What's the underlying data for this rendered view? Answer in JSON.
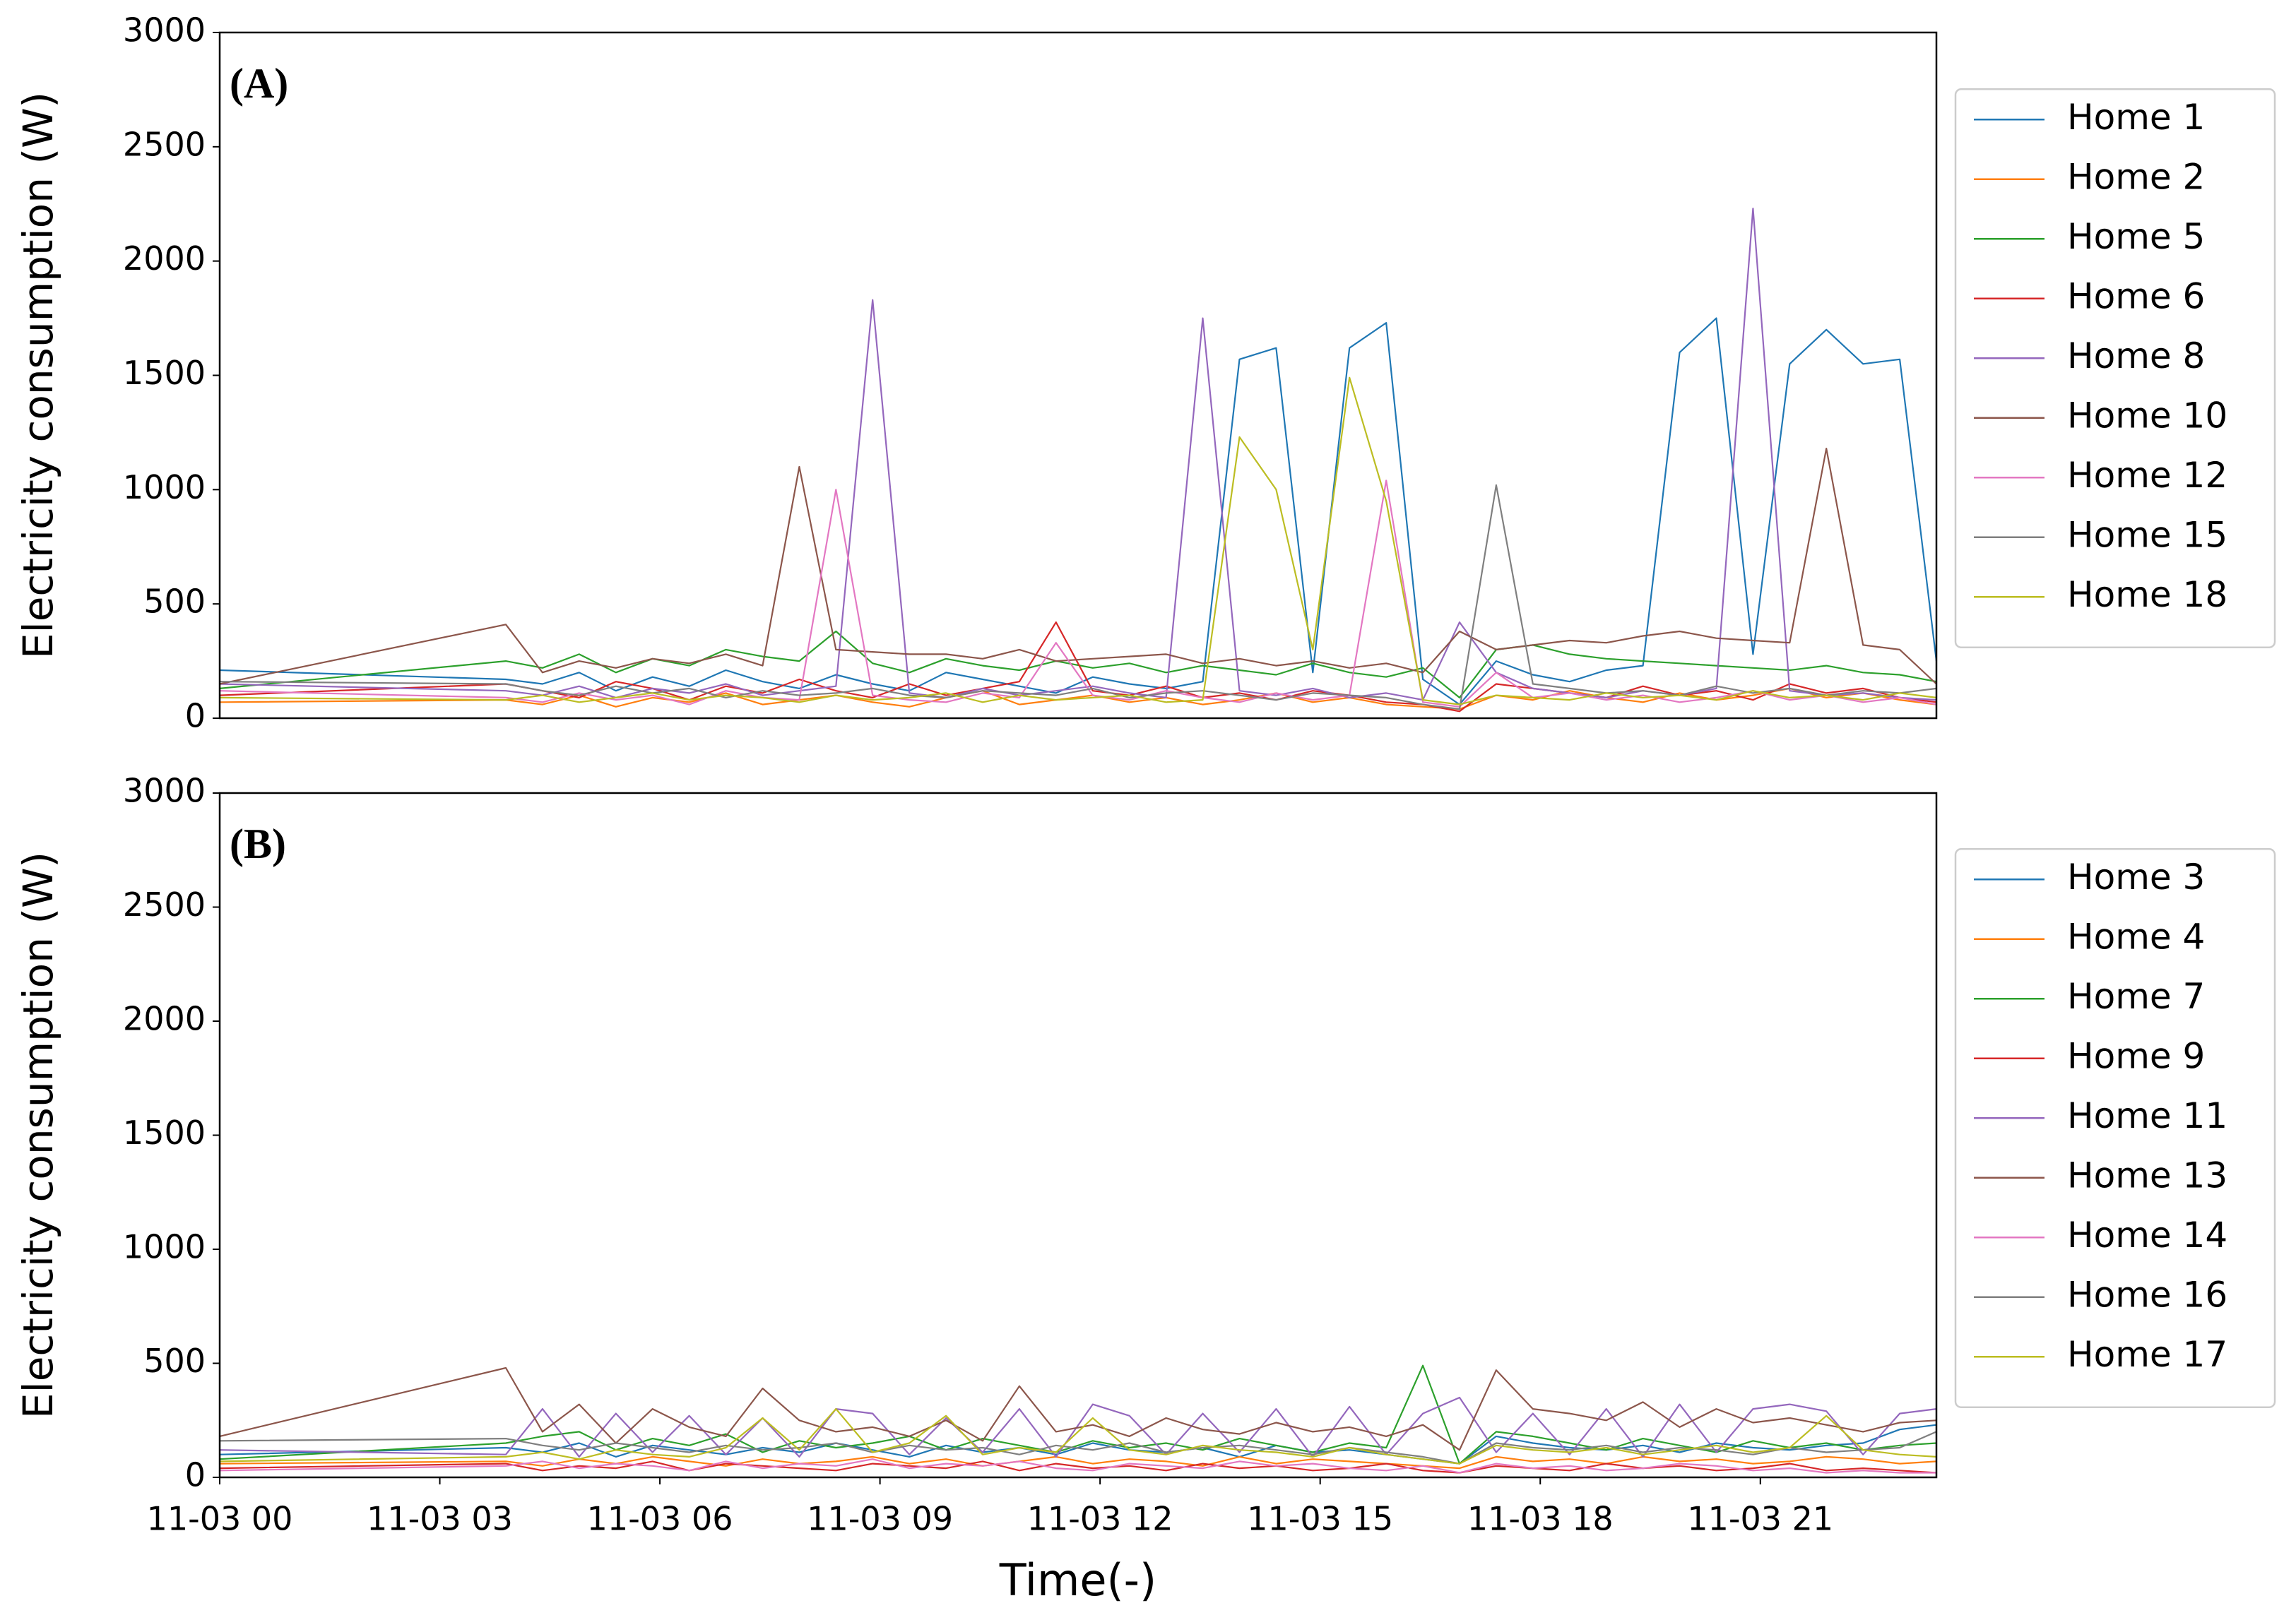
{
  "chart_data": [
    {
      "type": "line",
      "panel_label": "(A)",
      "ylabel": "Electricity consumption (W)",
      "xlim": [
        0,
        23.4
      ],
      "ylim": [
        0,
        3000
      ],
      "yticks": [
        0,
        500,
        1000,
        1500,
        2000,
        2500,
        3000
      ],
      "legend": "right",
      "x": [
        0,
        3.9,
        4.4,
        4.9,
        5.4,
        5.9,
        6.4,
        6.9,
        7.4,
        7.9,
        8.4,
        8.9,
        9.4,
        9.9,
        10.4,
        10.9,
        11.4,
        11.9,
        12.4,
        12.9,
        13.4,
        13.9,
        14.4,
        14.9,
        15.4,
        15.9,
        16.4,
        16.9,
        17.4,
        17.9,
        18.4,
        18.9,
        19.4,
        19.9,
        20.4,
        20.9,
        21.4,
        21.9,
        22.4,
        22.9,
        23.4
      ],
      "series": [
        {
          "name": "Home 1",
          "color": "#1f77b4",
          "values": [
            210,
            170,
            150,
            200,
            120,
            180,
            140,
            210,
            160,
            130,
            190,
            150,
            120,
            200,
            170,
            140,
            110,
            180,
            150,
            130,
            160,
            1570,
            1620,
            200,
            1620,
            1730,
            170,
            60,
            250,
            190,
            160,
            210,
            230,
            1600,
            1750,
            280,
            1550,
            1700,
            1550,
            1570,
            250
          ]
        },
        {
          "name": "Home 2",
          "color": "#ff7f0e",
          "values": [
            70,
            80,
            60,
            100,
            50,
            90,
            70,
            110,
            60,
            80,
            100,
            70,
            50,
            90,
            120,
            60,
            80,
            100,
            70,
            90,
            60,
            80,
            110,
            70,
            90,
            60,
            50,
            40,
            100,
            80,
            120,
            90,
            70,
            110,
            80,
            100,
            130,
            90,
            110,
            80,
            60
          ]
        },
        {
          "name": "Home 5",
          "color": "#2ca02c",
          "values": [
            130,
            250,
            220,
            280,
            200,
            260,
            230,
            300,
            270,
            250,
            380,
            240,
            200,
            260,
            230,
            210,
            250,
            220,
            240,
            200,
            230,
            210,
            190,
            240,
            200,
            180,
            220,
            90,
            300,
            320,
            280,
            260,
            250,
            240,
            230,
            220,
            210,
            230,
            200,
            190,
            160
          ]
        },
        {
          "name": "Home 6",
          "color": "#d62728",
          "values": [
            100,
            150,
            120,
            90,
            160,
            130,
            80,
            140,
            110,
            170,
            120,
            90,
            150,
            100,
            130,
            160,
            420,
            120,
            100,
            140,
            90,
            110,
            80,
            120,
            100,
            70,
            60,
            30,
            150,
            130,
            110,
            90,
            140,
            100,
            120,
            80,
            150,
            110,
            130,
            90,
            70
          ]
        },
        {
          "name": "Home 8",
          "color": "#9467bd",
          "values": [
            150,
            120,
            100,
            140,
            90,
            130,
            110,
            150,
            100,
            120,
            140,
            1830,
            110,
            90,
            130,
            100,
            120,
            140,
            110,
            90,
            1750,
            120,
            100,
            130,
            90,
            110,
            80,
            420,
            200,
            130,
            110,
            90,
            120,
            100,
            130,
            2230,
            120,
            100,
            110,
            90,
            80
          ]
        },
        {
          "name": "Home 10",
          "color": "#8c564b",
          "values": [
            150,
            410,
            200,
            250,
            220,
            260,
            240,
            280,
            230,
            1100,
            300,
            290,
            280,
            280,
            260,
            300,
            250,
            260,
            270,
            280,
            240,
            260,
            230,
            250,
            220,
            240,
            200,
            380,
            300,
            320,
            340,
            330,
            360,
            380,
            350,
            340,
            330,
            1180,
            320,
            300,
            150
          ]
        },
        {
          "name": "Home 12",
          "color": "#e377c2",
          "values": [
            120,
            90,
            70,
            110,
            80,
            100,
            60,
            120,
            90,
            80,
            1000,
            100,
            80,
            70,
            110,
            90,
            330,
            100,
            80,
            120,
            90,
            70,
            110,
            80,
            100,
            1040,
            70,
            50,
            200,
            90,
            110,
            80,
            100,
            70,
            90,
            120,
            80,
            100,
            70,
            90,
            60
          ]
        },
        {
          "name": "Home 15",
          "color": "#7f7f7f",
          "values": [
            160,
            150,
            120,
            100,
            140,
            110,
            130,
            90,
            120,
            100,
            110,
            130,
            100,
            90,
            120,
            110,
            100,
            130,
            90,
            110,
            120,
            100,
            80,
            110,
            100,
            90,
            60,
            40,
            1020,
            150,
            130,
            110,
            120,
            100,
            140,
            110,
            130,
            100,
            120,
            110,
            130
          ]
        },
        {
          "name": "Home 18",
          "color": "#bcbd22",
          "values": [
            90,
            80,
            100,
            70,
            90,
            110,
            80,
            100,
            90,
            70,
            100,
            80,
            90,
            110,
            70,
            100,
            80,
            90,
            100,
            70,
            80,
            1230,
            1000,
            300,
            1490,
            950,
            80,
            60,
            100,
            90,
            80,
            110,
            90,
            100,
            80,
            120,
            90,
            100,
            80,
            110,
            90
          ]
        }
      ]
    },
    {
      "type": "line",
      "panel_label": "(B)",
      "ylabel": "Electricity consumption (W)",
      "xlabel": "Time(-)",
      "xlim": [
        0,
        23.4
      ],
      "ylim": [
        0,
        3000
      ],
      "yticks": [
        0,
        500,
        1000,
        1500,
        2000,
        2500,
        3000
      ],
      "legend": "right",
      "xticks": [
        {
          "value": 0,
          "label": "11-03 00"
        },
        {
          "value": 3,
          "label": "11-03 03"
        },
        {
          "value": 6,
          "label": "11-03 06"
        },
        {
          "value": 9,
          "label": "11-03 09"
        },
        {
          "value": 12,
          "label": "11-03 12"
        },
        {
          "value": 15,
          "label": "11-03 15"
        },
        {
          "value": 18,
          "label": "11-03 18"
        },
        {
          "value": 21,
          "label": "11-03 21"
        }
      ],
      "x": [
        0,
        3.9,
        4.4,
        4.9,
        5.4,
        5.9,
        6.4,
        6.9,
        7.4,
        7.9,
        8.4,
        8.9,
        9.4,
        9.9,
        10.4,
        10.9,
        11.4,
        11.9,
        12.4,
        12.9,
        13.4,
        13.9,
        14.4,
        14.9,
        15.4,
        15.9,
        16.4,
        16.9,
        17.4,
        17.9,
        18.4,
        18.9,
        19.4,
        19.9,
        20.4,
        20.9,
        21.4,
        21.9,
        22.4,
        22.9,
        23.4
      ],
      "series": [
        {
          "name": "Home 3",
          "color": "#1f77b4",
          "values": [
            100,
            130,
            110,
            150,
            90,
            140,
            120,
            100,
            130,
            110,
            150,
            120,
            90,
            140,
            110,
            130,
            100,
            150,
            120,
            110,
            130,
            90,
            140,
            110,
            120,
            100,
            80,
            60,
            180,
            150,
            130,
            120,
            140,
            110,
            150,
            130,
            120,
            140,
            150,
            210,
            230
          ]
        },
        {
          "name": "Home 4",
          "color": "#ff7f0e",
          "values": [
            60,
            70,
            50,
            80,
            60,
            90,
            70,
            50,
            80,
            60,
            70,
            90,
            60,
            80,
            50,
            70,
            90,
            60,
            80,
            70,
            50,
            90,
            60,
            80,
            70,
            60,
            50,
            40,
            90,
            70,
            80,
            60,
            90,
            70,
            80,
            60,
            70,
            90,
            80,
            60,
            70
          ]
        },
        {
          "name": "Home 7",
          "color": "#2ca02c",
          "values": [
            80,
            150,
            180,
            200,
            120,
            170,
            140,
            190,
            110,
            160,
            130,
            150,
            180,
            120,
            170,
            140,
            110,
            160,
            130,
            150,
            120,
            170,
            140,
            110,
            150,
            130,
            490,
            60,
            200,
            180,
            150,
            120,
            170,
            140,
            110,
            160,
            130,
            150,
            120,
            140,
            150
          ]
        },
        {
          "name": "Home 9",
          "color": "#d62728",
          "values": [
            40,
            60,
            30,
            50,
            40,
            70,
            30,
            60,
            50,
            40,
            30,
            60,
            50,
            40,
            70,
            30,
            60,
            40,
            50,
            30,
            60,
            40,
            50,
            30,
            40,
            60,
            30,
            20,
            50,
            40,
            30,
            60,
            40,
            50,
            30,
            40,
            60,
            30,
            40,
            30,
            20
          ]
        },
        {
          "name": "Home 11",
          "color": "#9467bd",
          "values": [
            120,
            100,
            300,
            90,
            280,
            110,
            270,
            100,
            260,
            90,
            300,
            280,
            100,
            260,
            110,
            300,
            90,
            320,
            270,
            100,
            280,
            110,
            300,
            90,
            310,
            100,
            280,
            350,
            110,
            280,
            100,
            300,
            90,
            320,
            110,
            300,
            320,
            290,
            100,
            280,
            300
          ]
        },
        {
          "name": "Home 13",
          "color": "#8c564b",
          "values": [
            180,
            480,
            200,
            320,
            150,
            300,
            220,
            180,
            390,
            250,
            200,
            220,
            180,
            250,
            160,
            400,
            200,
            230,
            180,
            260,
            210,
            190,
            240,
            200,
            220,
            180,
            230,
            120,
            470,
            300,
            280,
            250,
            330,
            220,
            300,
            240,
            260,
            230,
            200,
            240,
            250
          ]
        },
        {
          "name": "Home 14",
          "color": "#e377c2",
          "values": [
            30,
            50,
            70,
            40,
            60,
            50,
            30,
            70,
            40,
            60,
            50,
            80,
            40,
            60,
            50,
            70,
            40,
            30,
            60,
            50,
            40,
            70,
            50,
            60,
            40,
            30,
            50,
            20,
            60,
            40,
            50,
            30,
            40,
            60,
            50,
            30,
            40,
            20,
            30,
            20,
            20
          ]
        },
        {
          "name": "Home 16",
          "color": "#7f7f7f",
          "values": [
            160,
            170,
            140,
            120,
            150,
            130,
            110,
            140,
            120,
            130,
            150,
            110,
            140,
            120,
            130,
            100,
            140,
            120,
            150,
            110,
            130,
            140,
            120,
            100,
            130,
            110,
            90,
            60,
            150,
            130,
            120,
            140,
            110,
            130,
            120,
            100,
            130,
            110,
            120,
            130,
            200
          ]
        },
        {
          "name": "Home 17",
          "color": "#bcbd22",
          "values": [
            70,
            90,
            110,
            80,
            120,
            100,
            90,
            130,
            260,
            120,
            300,
            110,
            150,
            270,
            100,
            130,
            110,
            260,
            120,
            100,
            140,
            120,
            110,
            90,
            130,
            100,
            80,
            60,
            140,
            120,
            110,
            130,
            100,
            120,
            140,
            110,
            130,
            270,
            120,
            100,
            90
          ]
        }
      ]
    }
  ]
}
